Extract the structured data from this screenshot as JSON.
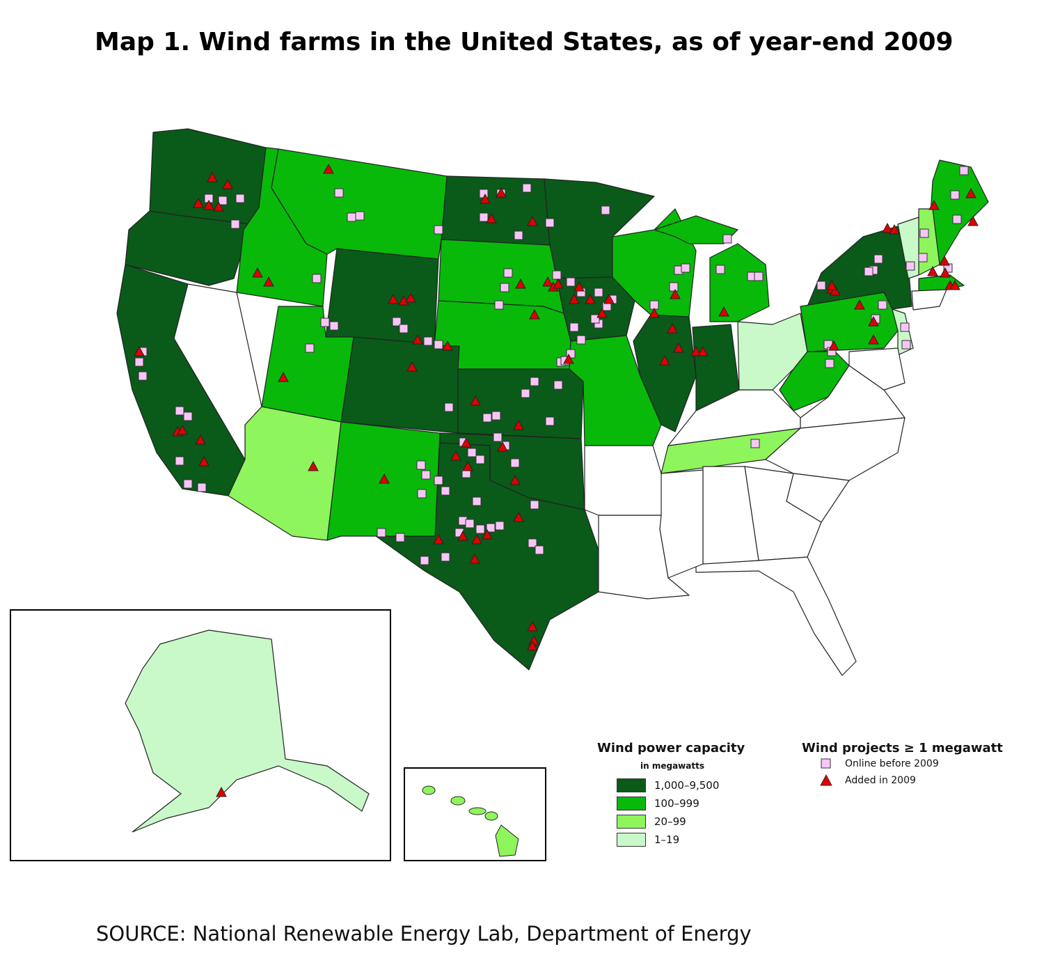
{
  "title": "Map 1. Wind farms in the United States, as of year-end 2009",
  "source": "SOURCE: National Renewable Energy Lab, Department of Energy",
  "colors": {
    "tier1": "#0a5a1a",
    "tier2": "#08b90a",
    "tier3": "#8ef55c",
    "tier4": "#c9f8c9",
    "none": "#ffffff",
    "online": "#f7c6f7",
    "added": "#e00000"
  },
  "legend": {
    "capacity": {
      "heading": "Wind power capacity",
      "sub": "in megawatts",
      "items": [
        {
          "label": "1,000–9,500",
          "color": "#0a5a1a"
        },
        {
          "label": "100–999",
          "color": "#08b90a"
        },
        {
          "label": "20–99",
          "color": "#8ef55c"
        },
        {
          "label": "1–19",
          "color": "#c9f8c9"
        }
      ]
    },
    "projects": {
      "heading": "Wind projects ≥ 1 megawatt",
      "items": [
        {
          "label": "Online before 2009",
          "symbol": "square"
        },
        {
          "label": "Added in 2009",
          "symbol": "triangle"
        }
      ]
    }
  }
}
